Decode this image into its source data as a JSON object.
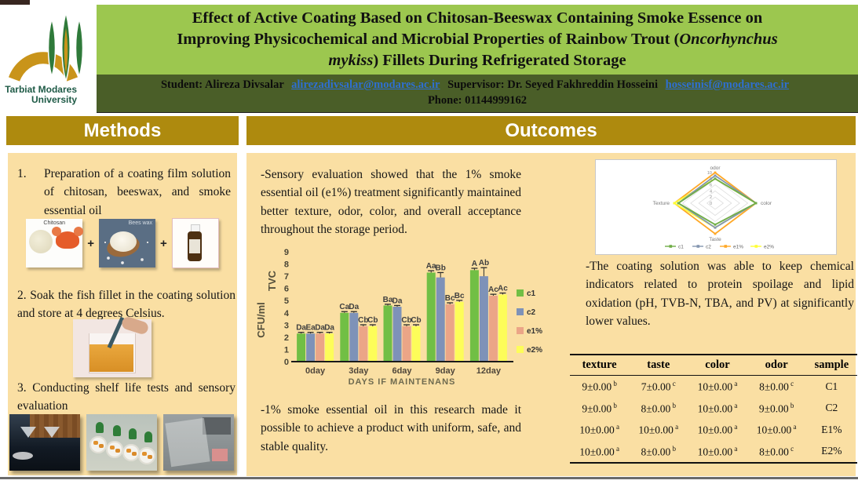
{
  "logo": {
    "line1": "Tarbiat Modares",
    "line2": "University"
  },
  "title": {
    "line1": "Effect of Active Coating Based on Chitosan-Beeswax Containing Smoke Essence on",
    "line2_pre": "Improving Physicochemical and Microbial Properties of Rainbow Trout (",
    "line2_italic": "Oncorhynchus",
    "line3_italic": "mykiss",
    "line3_post": ") Fillets During Refrigerated Storage"
  },
  "info": {
    "student": "Student: Alireza Divsalar",
    "student_email": "alirezadivsalar@modares.ac.ir",
    "supervisor": "Supervisor: Dr. Seyed Fakhreddin Hosseini",
    "supervisor_email": "hosseinisf@modares.ac.ir",
    "phone": "Phone: 01144999162"
  },
  "section_headers": {
    "methods": "Methods",
    "outcomes": "Outcomes"
  },
  "methods": {
    "step1_num": "1.",
    "step1": "Preparation of a coating film solution of chitosan, beeswax, and smoke essential oil",
    "ing1_label": "Chitosan",
    "ing2_label": "Bees wax",
    "plus": "+",
    "step2": "2. Soak the fish fillet in the coating solution and store at 4 degrees Celsius.",
    "step3": "3. Conducting shelf life tests and sensory evaluation"
  },
  "outcomes": {
    "para1": "-Sensory evaluation showed that the 1% smoke essential oil (e1%) treatment significantly maintained better texture, odor, color, and overall acceptance throughout the storage period.",
    "para2": "-1% smoke essential oil in this research made it possible to achieve a product with uniform, safe, and stable quality.",
    "para3": "-The coating solution was able to keep chemical indicators related to protein spoilage and lipid oxidation (pH, TVB-N, TBA, and PV) at significantly lower values."
  },
  "colors": {
    "banner_green": "#9CC74F",
    "dark_green": "#4A5E28",
    "gold": "#AE8A0E",
    "panel_tan": "#FADFA3",
    "link_blue": "#2E6FD2"
  },
  "chart_data": [
    {
      "type": "bar",
      "title": "",
      "categories": [
        "0day",
        "3day",
        "6day",
        "9day",
        "12day"
      ],
      "series": [
        {
          "name": "c1",
          "color": "#71BF45",
          "values": [
            2.3,
            4.0,
            4.6,
            7.3,
            7.5
          ],
          "labels": [
            "Da",
            "Ca",
            "Ba",
            "Aa",
            "A"
          ],
          "errors": [
            0.1,
            0.1,
            0.1,
            0.15,
            0.15
          ]
        },
        {
          "name": "c2",
          "color": "#7E92B8",
          "values": [
            2.3,
            4.0,
            4.5,
            6.9,
            7.0
          ],
          "labels": [
            "Ea",
            "Da",
            "Da",
            "Bb",
            "Ab"
          ],
          "errors": [
            0.1,
            0.1,
            0.1,
            0.4,
            0.7
          ]
        },
        {
          "name": "e1%",
          "color": "#EBA587",
          "values": [
            2.3,
            2.9,
            2.9,
            4.7,
            5.4
          ],
          "labels": [
            "Da",
            "Cb",
            "Cb",
            "Bc",
            "Ac"
          ],
          "errors": [
            0.1,
            0.12,
            0.12,
            0.12,
            0.12
          ]
        },
        {
          "name": "e2%",
          "color": "#FDFD59",
          "values": [
            2.3,
            2.9,
            2.9,
            4.9,
            5.5
          ],
          "labels": [
            "Da",
            "Cb",
            "Cb",
            "Bc",
            "Ac"
          ],
          "errors": [
            0.1,
            0.12,
            0.12,
            0.12,
            0.12
          ]
        }
      ],
      "ylabel_inner": "TVC",
      "ylabel_outer": "CFU/ml",
      "xlabel": "DAYS IF MAINTENANS",
      "ylim": [
        0,
        9
      ],
      "yticks": [
        0,
        1,
        2,
        3,
        4,
        5,
        6,
        7,
        8,
        9
      ],
      "legend_position": "right",
      "grid": false
    },
    {
      "type": "radar",
      "axes": [
        "odor",
        "color",
        "Taste",
        "Texture"
      ],
      "ticks": [
        0,
        2,
        4,
        6,
        8,
        10
      ],
      "range": [
        0,
        10
      ],
      "series": [
        {
          "name": "c1",
          "color": "#70AD47",
          "values": [
            8,
            10,
            7,
            9
          ]
        },
        {
          "name": "c2",
          "color": "#8496B0",
          "values": [
            9,
            10,
            8,
            9
          ]
        },
        {
          "name": "e1%",
          "color": "#FFA826",
          "values": [
            10,
            10,
            10,
            10
          ]
        },
        {
          "name": "e2%",
          "color": "#FFFF33",
          "values": [
            8,
            10,
            8,
            10
          ]
        }
      ],
      "legend_position": "bottom"
    }
  ],
  "table": {
    "headers": [
      "texture",
      "taste",
      "color",
      "odor",
      "sample"
    ],
    "rows": [
      [
        {
          "v": "9±0.00",
          "s": "b"
        },
        {
          "v": "7±0.00",
          "s": "c"
        },
        {
          "v": "10±0.00",
          "s": "a"
        },
        {
          "v": "8±0.00",
          "s": "c"
        },
        {
          "v": "C1",
          "s": ""
        }
      ],
      [
        {
          "v": "9±0.00",
          "s": "b"
        },
        {
          "v": "8±0.00",
          "s": "b"
        },
        {
          "v": "10±0.00",
          "s": "a"
        },
        {
          "v": "9±0.00",
          "s": "b"
        },
        {
          "v": "C2",
          "s": ""
        }
      ],
      [
        {
          "v": "10±0.00",
          "s": "a"
        },
        {
          "v": "10±0.00",
          "s": "a"
        },
        {
          "v": "10±0.00",
          "s": "a"
        },
        {
          "v": "10±0.00",
          "s": "a"
        },
        {
          "v": "E1%",
          "s": ""
        }
      ],
      [
        {
          "v": "10±0.00",
          "s": "a"
        },
        {
          "v": "8±0.00",
          "s": "b"
        },
        {
          "v": "10±0.00",
          "s": "a"
        },
        {
          "v": "8±0.00",
          "s": "c"
        },
        {
          "v": "E2%",
          "s": ""
        }
      ]
    ]
  }
}
